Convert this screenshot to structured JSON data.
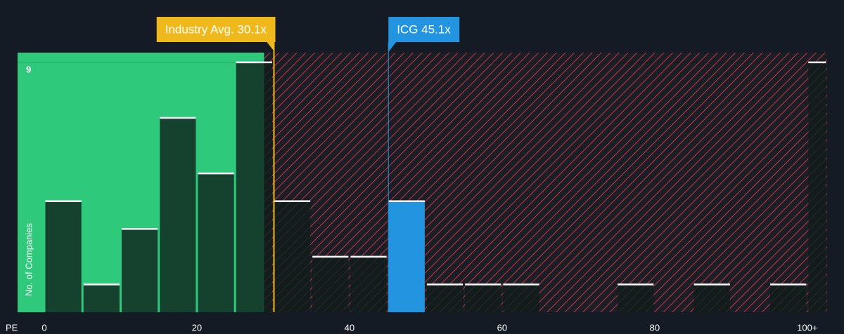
{
  "chart_data": {
    "type": "histogram",
    "xlabel": "PE",
    "ylabel": "No. of Companies",
    "bins": [
      0,
      5,
      10,
      15,
      20,
      25,
      30,
      35,
      40,
      45,
      50,
      55,
      60,
      65,
      70,
      75,
      80,
      85,
      90,
      95,
      100,
      105
    ],
    "values": [
      4,
      1,
      3,
      7,
      5,
      9,
      4,
      2,
      2,
      4,
      1,
      1,
      1,
      0,
      0,
      1,
      0,
      1,
      0,
      1,
      9
    ],
    "color": "rgba(14,28,26,0.78)",
    "highlight_bin": 9,
    "highlight_color": "#2394e0",
    "xlim": [
      -3.5,
      102.6
    ],
    "xticks": [
      0,
      20,
      40,
      60,
      80,
      {
        "value": 100,
        "label": "100+"
      }
    ],
    "ylim": [
      0,
      9.35
    ],
    "yticks": [
      9
    ],
    "grid": true,
    "annotations": [
      {
        "label": "Industry Avg. 30.1x",
        "value": 30.1,
        "color": "#f0b91b"
      },
      {
        "label": "ICG 45.1x",
        "value": 45.1,
        "color": "#2394e0"
      }
    ]
  }
}
